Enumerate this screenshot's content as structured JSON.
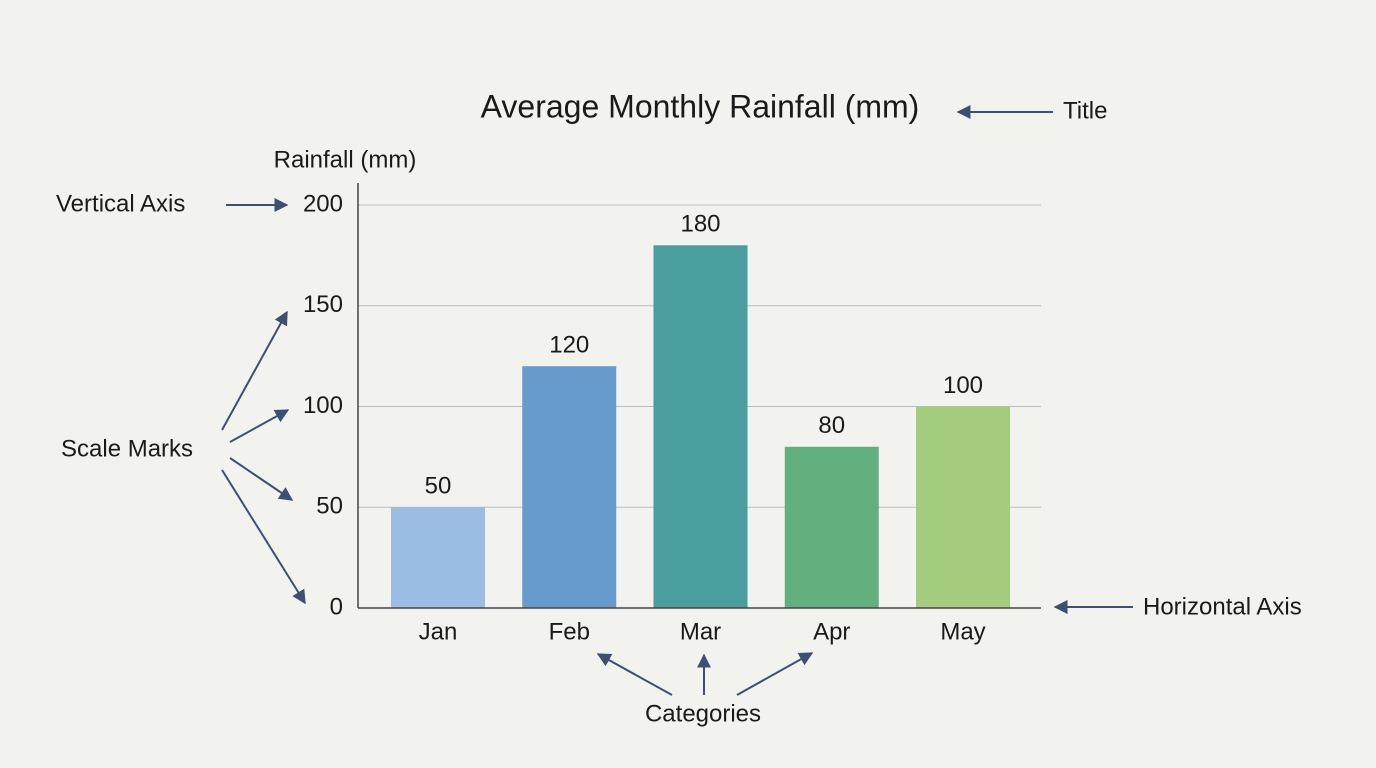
{
  "chart_data": {
    "type": "bar",
    "title": "Average Monthly Rainfall (mm)",
    "y_label": "Rainfall (mm)",
    "categories": [
      "Jan",
      "Feb",
      "Mar",
      "Apr",
      "May"
    ],
    "values": [
      50,
      120,
      180,
      80,
      100
    ],
    "colors": [
      "#9bbde3",
      "#6699cc",
      "#4a9e9e",
      "#62b07e",
      "#a3cc7e"
    ],
    "ylim": [
      0,
      200
    ],
    "yticks": [
      0,
      50,
      100,
      150,
      200
    ],
    "grid": true,
    "annotations": [
      "Title",
      "Vertical Axis",
      "Scale Marks",
      "Horizontal Axis",
      "Categories"
    ]
  }
}
